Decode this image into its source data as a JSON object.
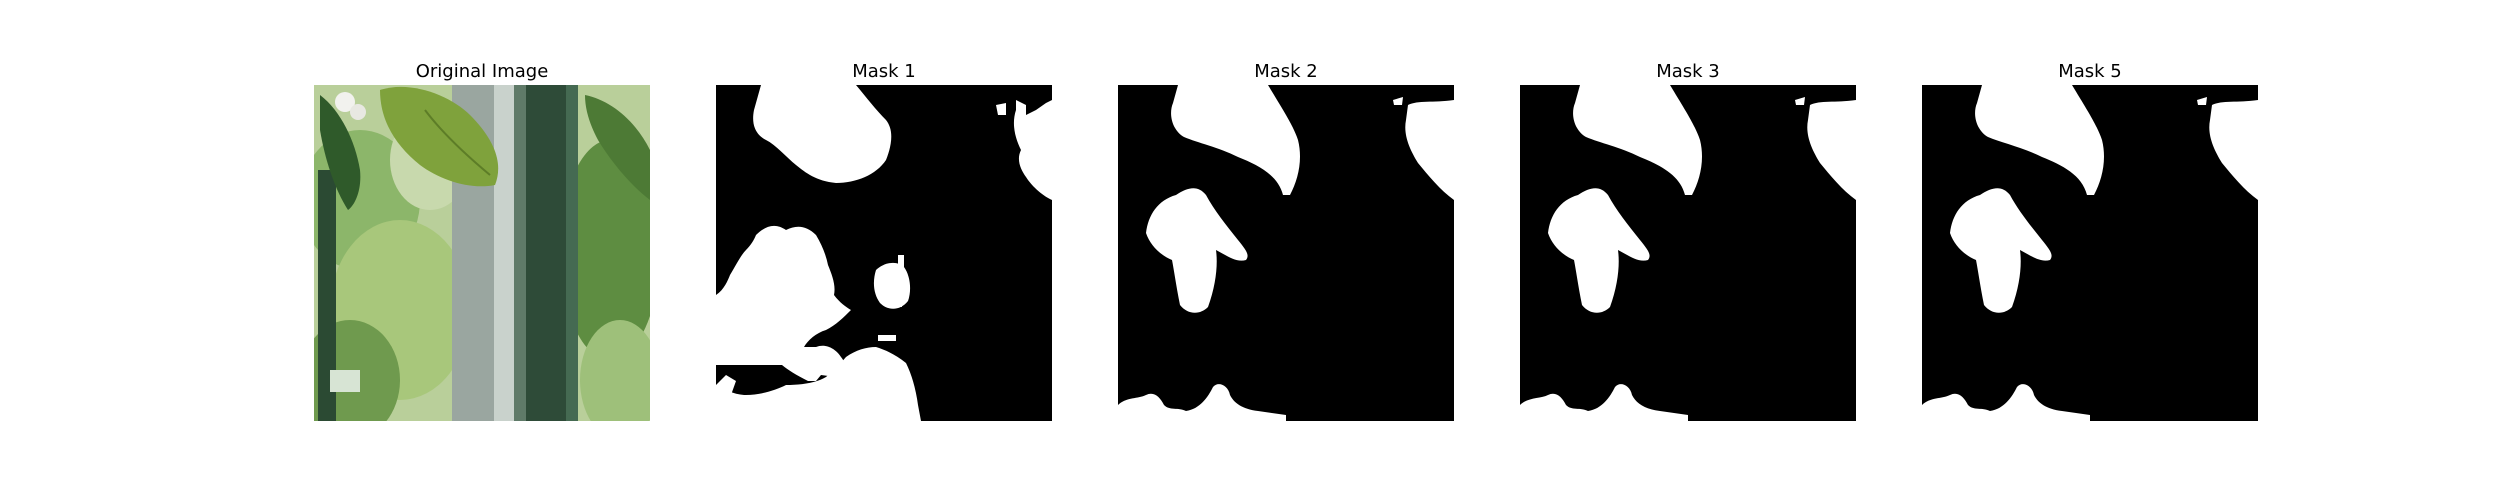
{
  "figure": {
    "background": "#ffffff",
    "panels": [
      {
        "title": "Original Image",
        "kind": "photo"
      },
      {
        "title": "Mask 1",
        "kind": "mask"
      },
      {
        "title": "Mask 2",
        "kind": "mask"
      },
      {
        "title": "Mask 3",
        "kind": "mask"
      },
      {
        "title": "Mask 5",
        "kind": "mask"
      }
    ]
  },
  "colors": {
    "mask_foreground": "#ffffff",
    "mask_background": "#000000",
    "leaf_green": "#7fa23c",
    "dark_leaf": "#2f5a2a",
    "foliage": "#8cb66a",
    "frame_grey": "#8f9a92",
    "frame_dark": "#2e4b38"
  }
}
